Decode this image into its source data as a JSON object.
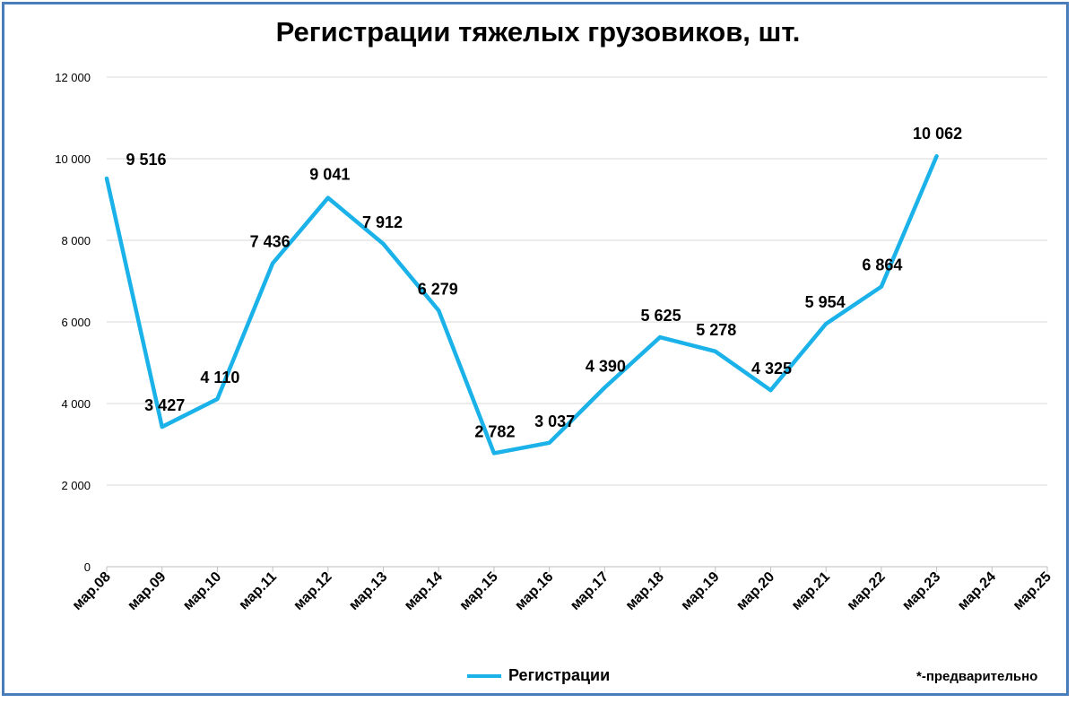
{
  "chart_data": {
    "type": "line",
    "title": "Регистрации тяжелых грузовиков, шт.",
    "categories": [
      "мар.08",
      "мар.09",
      "мар.10",
      "мар.11",
      "мар.12",
      "мар.13",
      "мар.14",
      "мар.15",
      "мар.16",
      "мар.17",
      "мар.18",
      "мар.19",
      "мар.20",
      "мар.21",
      "мар.22",
      "мар.23",
      "мар.24",
      "мар.25"
    ],
    "series": [
      {
        "name": "Регистрации",
        "color": "#1ab2e8",
        "values": [
          9516,
          3427,
          4110,
          7436,
          9041,
          7912,
          6279,
          2782,
          3037,
          4390,
          5625,
          5278,
          4325,
          5954,
          6864,
          10062,
          null,
          null
        ],
        "value_labels": [
          "9 516",
          "3 427",
          "4 110",
          "7 436",
          "9 041",
          "7 912",
          "6 279",
          "2 782",
          "3 037",
          "4 390",
          "5 625",
          "5 278",
          "4 325",
          "5 954",
          "6 864",
          "10 062"
        ]
      }
    ],
    "ylim": [
      0,
      12000
    ],
    "yticks": [
      0,
      2000,
      4000,
      6000,
      8000,
      10000,
      12000
    ],
    "ytick_labels": [
      "0",
      "2 000",
      "4 000",
      "6 000",
      "8 000",
      "10 000",
      "12 000"
    ],
    "grid": true,
    "legend_position": "bottom-center",
    "footnote": "*-предварительно"
  }
}
